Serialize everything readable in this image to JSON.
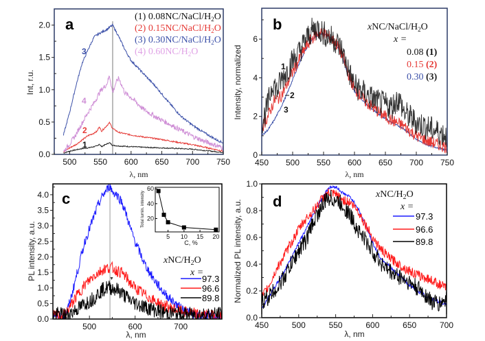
{
  "chart_data": [
    {
      "panel": "a",
      "type": "line",
      "title": "",
      "xlabel": "λ, nm",
      "ylabel": "Int, r.u.",
      "xlim": [
        475,
        750
      ],
      "ylim": [
        0,
        2.25
      ],
      "xticks": [
        500,
        550,
        600,
        650,
        700,
        750
      ],
      "yticks": [
        0.0,
        0.5,
        1.0,
        1.5,
        2.0
      ],
      "ytick_labels": [
        "0.0",
        "0.5",
        "1.0",
        "1.5",
        "2.0"
      ],
      "vline_x": 570,
      "frame_color": "#2b3a67",
      "legend_placement": "top-right",
      "series": [
        {
          "name": "(1) 0.08NC/NaCl/H2O",
          "label_num": "1",
          "color": "#222222",
          "x": [
            490,
            500,
            510,
            520,
            530,
            540,
            545,
            548,
            552,
            560,
            565,
            570,
            580,
            600,
            620,
            650,
            680,
            700,
            720,
            750
          ],
          "y": [
            0.02,
            0.05,
            0.07,
            0.09,
            0.1,
            0.12,
            0.13,
            0.16,
            0.12,
            0.16,
            0.18,
            0.14,
            0.13,
            0.12,
            0.11,
            0.1,
            0.09,
            0.08,
            0.06,
            0.03
          ]
        },
        {
          "name": "(2) 0.15NC/NaCl/H2O",
          "label_num": "2",
          "color": "#e53935",
          "x": [
            490,
            500,
            510,
            520,
            530,
            540,
            545,
            548,
            552,
            560,
            565,
            570,
            580,
            600,
            620,
            650,
            680,
            700,
            720,
            750
          ],
          "y": [
            0.04,
            0.1,
            0.15,
            0.22,
            0.29,
            0.33,
            0.36,
            0.43,
            0.36,
            0.44,
            0.49,
            0.4,
            0.34,
            0.3,
            0.27,
            0.23,
            0.18,
            0.15,
            0.11,
            0.05
          ]
        },
        {
          "name": "(3) 0.30NC/NaCl/H2O",
          "label_num": "3",
          "color": "#3a4fa8",
          "x": [
            490,
            500,
            510,
            520,
            530,
            540,
            550,
            560,
            570,
            580,
            590,
            600,
            620,
            640,
            660,
            680,
            700,
            720,
            740,
            750
          ],
          "y": [
            0.3,
            0.65,
            1.05,
            1.4,
            1.62,
            1.82,
            1.88,
            1.93,
            2.0,
            1.82,
            1.62,
            1.45,
            1.25,
            1.05,
            0.82,
            0.6,
            0.45,
            0.33,
            0.22,
            0.18
          ]
        },
        {
          "name": "(4) 0.60NC/H2O",
          "label_num": "4",
          "color": "#cf8fd6",
          "x": [
            490,
            500,
            510,
            520,
            530,
            540,
            550,
            560,
            565,
            570,
            575,
            580,
            590,
            600,
            620,
            640,
            660,
            680,
            700,
            720,
            750
          ],
          "y": [
            0.04,
            0.16,
            0.3,
            0.48,
            0.65,
            0.8,
            0.98,
            1.08,
            1.22,
            0.95,
            1.1,
            1.18,
            0.95,
            0.88,
            0.7,
            0.58,
            0.48,
            0.38,
            0.28,
            0.2,
            0.1
          ]
        }
      ]
    },
    {
      "panel": "b",
      "type": "line",
      "title": "",
      "xlabel": "λ, nm",
      "ylabel": "Intensity, normalized",
      "xlim": [
        450,
        750
      ],
      "ylim": [
        0,
        7.6
      ],
      "xticks": [
        450,
        500,
        550,
        600,
        650,
        700,
        750
      ],
      "yticks": [
        0,
        2,
        4,
        6
      ],
      "frame_color": "#2b3a67",
      "legend_title": "xNC/NaCl/H2O",
      "legend_subtitle": "x =",
      "legend_placement": "top-right",
      "series": [
        {
          "name": "0.08 (1)",
          "value": "0.08",
          "label_num": "1",
          "color": "#111111",
          "x": [
            450,
            460,
            468,
            475,
            480,
            490,
            500,
            510,
            520,
            530,
            540,
            550,
            560,
            570,
            580,
            590,
            600,
            620,
            640,
            660,
            670,
            675,
            680,
            700,
            720,
            750
          ],
          "y": [
            1.6,
            2.6,
            3.8,
            3.3,
            3.8,
            4.3,
            4.9,
            5.3,
            5.9,
            6.4,
            6.6,
            6.3,
            6.1,
            5.9,
            5.4,
            4.4,
            3.6,
            3.1,
            2.7,
            2.5,
            2.9,
            2.7,
            2.2,
            1.7,
            1.4,
            1.0
          ]
        },
        {
          "name": "0.15 (2)",
          "value": "0.15",
          "label_num": "2",
          "color": "#e53935",
          "x": [
            450,
            460,
            470,
            480,
            490,
            500,
            510,
            520,
            530,
            540,
            550,
            560,
            570,
            580,
            590,
            600,
            620,
            640,
            660,
            680,
            700,
            720,
            750
          ],
          "y": [
            1.4,
            2.0,
            2.8,
            3.0,
            3.6,
            4.3,
            4.9,
            5.5,
            6.0,
            6.3,
            6.3,
            6.1,
            5.8,
            5.2,
            4.2,
            3.4,
            2.7,
            2.2,
            1.8,
            1.5,
            1.0,
            0.7,
            0.4
          ]
        },
        {
          "name": "0.30 (3)",
          "value": "0.30",
          "label_num": "3",
          "color": "#3a4fa8",
          "x": [
            450,
            460,
            470,
            480,
            490,
            500,
            510,
            520,
            530,
            540,
            550,
            560,
            570,
            580,
            590,
            600,
            620,
            640,
            660,
            680,
            700,
            720,
            750
          ],
          "y": [
            1.0,
            1.3,
            1.8,
            2.4,
            3.1,
            3.9,
            4.7,
            5.4,
            5.9,
            6.2,
            6.3,
            6.1,
            5.8,
            5.1,
            4.1,
            3.3,
            2.6,
            2.1,
            1.7,
            1.35,
            0.8,
            0.5,
            0.25
          ]
        }
      ]
    },
    {
      "panel": "c",
      "type": "line",
      "title": "",
      "xlabel": "λ, nm",
      "ylabel": "PL intensity, a.u.",
      "xlim": [
        420,
        790
      ],
      "ylim": [
        0,
        4.35
      ],
      "xticks": [
        500,
        600,
        700
      ],
      "yticks": [
        0.0,
        0.5,
        1.0,
        1.5,
        2.0,
        2.5,
        3.0,
        3.5,
        4.0
      ],
      "ytick_labels": [
        "0.0",
        "0.5",
        "1.0",
        "1.5",
        "2.0",
        "2.5",
        "3.0",
        "3.5",
        "4.0"
      ],
      "vline_x": 545,
      "frame_color": "#000000",
      "legend_title": "xNC/H2O",
      "legend_subtitle": "x =",
      "legend_placement": "right",
      "series": [
        {
          "name": "97.3",
          "color": "#1a1aff",
          "x": [
            420,
            440,
            450,
            460,
            470,
            480,
            490,
            500,
            510,
            520,
            530,
            540,
            545,
            550,
            560,
            570,
            580,
            590,
            600,
            620,
            640,
            660,
            680,
            700,
            720,
            740,
            760,
            790
          ],
          "y": [
            0.05,
            0.05,
            0.2,
            0.7,
            1.3,
            1.9,
            2.5,
            2.9,
            3.3,
            3.7,
            4.0,
            4.2,
            4.3,
            4.1,
            4.0,
            3.8,
            3.4,
            2.9,
            2.5,
            1.8,
            1.3,
            0.9,
            0.6,
            0.35,
            0.2,
            0.1,
            0.1,
            0.05
          ]
        },
        {
          "name": "96.6",
          "color": "#ff1a1a",
          "x": [
            420,
            440,
            450,
            460,
            470,
            480,
            490,
            500,
            510,
            520,
            530,
            540,
            550,
            560,
            570,
            580,
            590,
            600,
            620,
            640,
            660,
            680,
            700,
            720,
            740,
            760,
            790
          ],
          "y": [
            0.1,
            0.1,
            0.2,
            0.45,
            0.7,
            0.9,
            1.1,
            1.25,
            1.4,
            1.5,
            1.6,
            1.65,
            1.65,
            1.55,
            1.5,
            1.35,
            1.15,
            1.0,
            0.8,
            0.6,
            0.45,
            0.35,
            0.25,
            0.2,
            0.15,
            0.12,
            0.1
          ]
        },
        {
          "name": "89.8",
          "color": "#000000",
          "x": [
            420,
            440,
            450,
            460,
            470,
            480,
            490,
            500,
            510,
            520,
            530,
            540,
            550,
            560,
            570,
            580,
            590,
            600,
            620,
            640,
            660,
            680,
            700,
            720,
            740,
            760,
            790
          ],
          "y": [
            0.15,
            0.15,
            0.12,
            0.2,
            0.3,
            0.38,
            0.5,
            0.58,
            0.68,
            0.85,
            0.95,
            1.02,
            1.0,
            0.95,
            0.85,
            0.72,
            0.6,
            0.52,
            0.4,
            0.3,
            0.22,
            0.18,
            0.15,
            0.15,
            0.15,
            0.15,
            0.15
          ]
        }
      ],
      "inset": {
        "type": "line",
        "xlabel": "C, %",
        "ylabel": "Total lumin. intensity",
        "xlim": [
          1,
          21
        ],
        "ylim": [
          2,
          62
        ],
        "xticks": [
          5,
          10,
          15,
          20
        ],
        "yticks": [
          20,
          40,
          60
        ],
        "points": {
          "x": [
            2,
            3.7,
            5,
            10,
            20
          ],
          "y": [
            57,
            25,
            15,
            8,
            5
          ]
        }
      }
    },
    {
      "panel": "d",
      "type": "line",
      "title": "",
      "xlabel": "λ, nm",
      "ylabel": "Normalized PL intensity, a.u.",
      "xlim": [
        450,
        700
      ],
      "ylim": [
        0,
        1.0
      ],
      "xticks": [
        450,
        500,
        550,
        600,
        650,
        700
      ],
      "yticks": [
        0.0,
        0.2,
        0.4,
        0.6,
        0.8,
        1.0
      ],
      "ytick_labels": [
        "0.0",
        "0.2",
        "0.4",
        "0.6",
        "0.8",
        "1.0"
      ],
      "frame_color": "#000000",
      "legend_title": "xNC/H2O",
      "legend_subtitle": "x =",
      "legend_placement": "top-right",
      "series": [
        {
          "name": "97.3",
          "color": "#1a1aff",
          "x": [
            450,
            460,
            470,
            480,
            490,
            500,
            510,
            520,
            530,
            540,
            550,
            560,
            570,
            580,
            590,
            600,
            610,
            620,
            630,
            640,
            650,
            660,
            670,
            680,
            690,
            700
          ],
          "y": [
            0.07,
            0.16,
            0.25,
            0.34,
            0.45,
            0.56,
            0.66,
            0.78,
            0.88,
            0.97,
            0.98,
            0.93,
            0.9,
            0.82,
            0.7,
            0.56,
            0.45,
            0.4,
            0.34,
            0.3,
            0.24,
            0.2,
            0.17,
            0.14,
            0.12,
            0.1
          ]
        },
        {
          "name": "96.6",
          "color": "#ff1a1a",
          "x": [
            450,
            460,
            470,
            480,
            490,
            500,
            510,
            520,
            530,
            540,
            550,
            560,
            570,
            580,
            590,
            600,
            610,
            620,
            630,
            640,
            650,
            660,
            670,
            680,
            690,
            700
          ],
          "y": [
            0.15,
            0.24,
            0.36,
            0.46,
            0.56,
            0.66,
            0.74,
            0.8,
            0.88,
            0.93,
            0.92,
            0.88,
            0.86,
            0.8,
            0.7,
            0.6,
            0.52,
            0.46,
            0.42,
            0.38,
            0.35,
            0.32,
            0.3,
            0.28,
            0.25,
            0.22
          ]
        },
        {
          "name": "89.8",
          "color": "#000000",
          "x": [
            450,
            460,
            470,
            480,
            490,
            500,
            510,
            520,
            530,
            540,
            550,
            560,
            570,
            580,
            590,
            600,
            610,
            620,
            630,
            640,
            650,
            660,
            670,
            680,
            690,
            700
          ],
          "y": [
            0.12,
            0.16,
            0.22,
            0.3,
            0.4,
            0.5,
            0.58,
            0.72,
            0.82,
            0.9,
            0.88,
            0.84,
            0.76,
            0.66,
            0.58,
            0.5,
            0.42,
            0.36,
            0.32,
            0.3,
            0.26,
            0.22,
            0.18,
            0.12,
            0.1,
            0.14
          ]
        }
      ]
    }
  ],
  "labels": {
    "panel_a": "a",
    "panel_b": "b",
    "panel_c": "c",
    "panel_d": "d",
    "lambda_nm": "λ, nm",
    "a_legend": [
      "(1) 0.08NC/NaCl/H",
      "(2) 0.15NC/NaCl/H",
      "(3) 0.30NC/NaCl/H",
      "(4) 0.60NC/H"
    ],
    "sub2": "2",
    "O": "O",
    "b_legend_title_x": "x",
    "b_legend_title_rest": "NC/NaCl/H",
    "x_eq": "x =",
    "b_values": [
      "0.08",
      "0.15",
      "0.30"
    ],
    "b_nums": [
      "(1)",
      "(2)",
      "(3)"
    ],
    "cd_legend_title_rest": "NC/H",
    "cd_values": [
      "97.3",
      "96.6",
      "89.8"
    ]
  }
}
